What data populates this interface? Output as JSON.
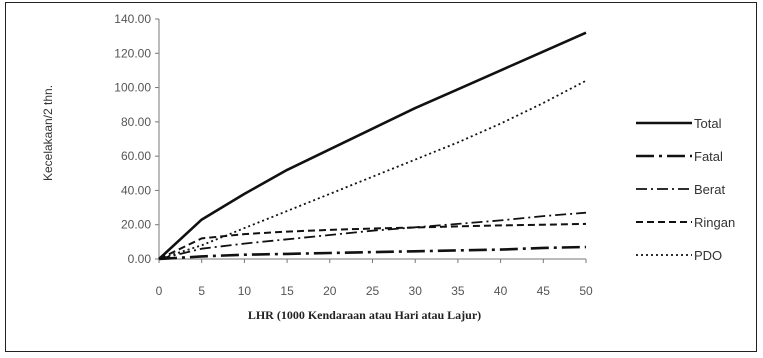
{
  "chart_data": {
    "type": "line",
    "title": "",
    "xlabel": "LHR (1000 Kendaraan atau Hari atau Lajur)",
    "ylabel": "Kecelakaan/2 thn.",
    "xlim": [
      0,
      50
    ],
    "ylim": [
      0,
      140
    ],
    "x_ticks": [
      "0",
      "5",
      "10",
      "15",
      "20",
      "25",
      "30",
      "35",
      "40",
      "45",
      "50"
    ],
    "y_ticks": [
      "0.00",
      "20.00",
      "40.00",
      "60.00",
      "80.00",
      "100.00",
      "120.00",
      "140.00"
    ],
    "grid": false,
    "legend_position": "right",
    "x": [
      0,
      5,
      10,
      15,
      20,
      25,
      30,
      35,
      40,
      45,
      50
    ],
    "series": [
      {
        "name": "Total",
        "style": "solid",
        "width": 2.6,
        "values": [
          0,
          23,
          38,
          52,
          64,
          76,
          88,
          99,
          110,
          121,
          132
        ]
      },
      {
        "name": "Fatal",
        "style": "longdash-dot",
        "width": 2.6,
        "values": [
          0,
          1.5,
          2.5,
          3,
          3.5,
          4,
          4.5,
          5,
          5.5,
          6.5,
          7
        ]
      },
      {
        "name": "Berat",
        "style": "dash-dot",
        "width": 1.8,
        "values": [
          0,
          6,
          9,
          11.5,
          14,
          16.5,
          18.5,
          20.5,
          22.5,
          25,
          27
        ]
      },
      {
        "name": "Ringan",
        "style": "dashed",
        "width": 2.0,
        "values": [
          0,
          12,
          14.5,
          16,
          17,
          17.8,
          18.4,
          19,
          19.6,
          20,
          20.5
        ]
      },
      {
        "name": "PDO",
        "style": "dotted",
        "width": 1.8,
        "values": [
          0,
          8,
          18,
          28,
          38,
          48,
          58,
          68,
          79,
          91,
          104
        ]
      }
    ]
  }
}
